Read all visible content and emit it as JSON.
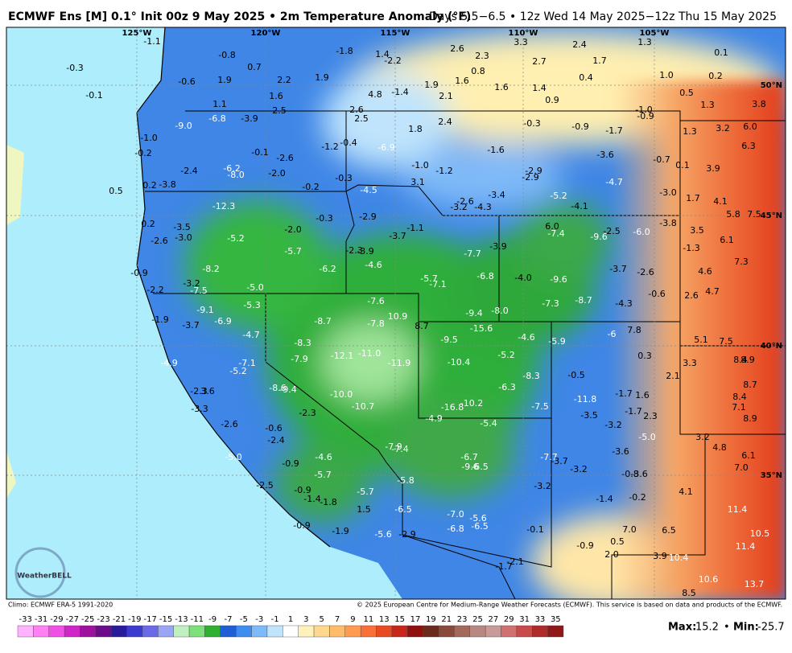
{
  "header": {
    "title": "ECMWF Ens [M] 0.1° Init 00z 9 May 2025 • 2m Temperature Anomaly (°F)",
    "valid": "Days 5.5−6.5 • 12z Wed 14 May 2025−12z Thu 15 May 2025"
  },
  "map": {
    "longitudes": [
      "125°W",
      "120°W",
      "115°W",
      "110°W",
      "105°W"
    ],
    "latitudes": [
      "50°N",
      "45°N",
      "40°N",
      "35°N"
    ],
    "labels": [
      "-1.1",
      "-0.8",
      "0.7",
      "-1.8",
      "1.4",
      "-2.2",
      "2.6",
      "2.3",
      "3.3",
      "2.4",
      "1.3",
      "0.1",
      "-0.3",
      "-0.6",
      "1.9",
      "2.2",
      "1.9",
      "1.9",
      "1.6",
      "0.8",
      "2.7",
      "1.7",
      "0.4",
      "1.0",
      "0.2",
      "1.6",
      "1.4",
      "-0.1",
      "1.1",
      "1.6",
      "4.8",
      "-1.4",
      "2.1",
      "0.9",
      "0.5",
      "1.3",
      "3.8",
      "2.5",
      "2.6",
      "-1.0",
      "-0.9",
      "-6.8",
      "-3.9",
      "2.5",
      "-9.0",
      "1.8",
      "2.4",
      "-0.3",
      "-0.9",
      "-1.7",
      "1.3",
      "3.2",
      "6.0",
      "-1.0",
      "-1.2",
      "-0.4",
      "-6.9",
      "-1.6",
      "-3.6",
      "6.3",
      "-0.2",
      "-0.1",
      "-2.6",
      "-0.7",
      "0.1",
      "3.9",
      "-2.4",
      "-6.2",
      "-8.0",
      "-2.0",
      "-1.0",
      "-1.2",
      "-2.9",
      "-2.9",
      "-4.7",
      "0.5",
      "0.2",
      "-3.8",
      "-0.3",
      "-0.2",
      "-4.5",
      "3.1",
      "-3.0",
      "1.7",
      "4.1",
      "-3.4",
      "-5.2",
      "-2.6",
      "-3.2",
      "-4.3",
      "-4.1",
      "-12.3",
      "-2.9",
      "-0.3",
      "5.8",
      "7.5",
      "0.2",
      "-1.1",
      "-3.8",
      "6.0",
      "-7.4",
      "-2.5",
      "-6.0",
      "-9.6",
      "3.5",
      "-3.5",
      "-2.0",
      "-3.0",
      "-2.6",
      "-5.2",
      "-3.7",
      "6.1",
      "-1.3",
      "-3.9",
      "-5.7",
      "-2.3",
      "-3.9",
      "-4.6",
      "-7.7",
      "7.3",
      "-8.2",
      "-6.2",
      "-3.7",
      "-2.6",
      "4.6",
      "-0.9",
      "-6.8",
      "-4.0",
      "-9.6",
      "-5.7",
      "-7.1",
      "-3.2",
      "4.7",
      "-5.0",
      "-2.2",
      "-7.5",
      "-0.6",
      "2.6",
      "-7.6",
      "-7.3",
      "-8.7",
      "-4.3",
      "-5.3",
      "-9.1",
      "-9.4",
      "-8.0",
      "10.9",
      "-1.9",
      "-6.9",
      "-8.7",
      "-7.8",
      "8.7",
      "-15.6",
      "-4.7",
      "-3.7",
      "-4.6",
      "-5.9",
      "-6",
      "7.8",
      "5.1",
      "7.5",
      "8.9",
      "-8.3",
      "-9.5",
      "-5.2",
      "0.3",
      "3.3",
      "8.4",
      "-12.1",
      "-11.0",
      "-7.9",
      "-11.9",
      "-10.4",
      "-7.1",
      "-4.9",
      "-5.2",
      "-8.3",
      "-0.5",
      "2.1",
      "8.7",
      "-6.3",
      "-8.6",
      "-9.4",
      "-2.3",
      "3.6",
      "-1.7",
      "1.6",
      "8.4",
      "-10.0",
      "-10.7",
      "-11.8",
      "-16.8",
      "-10.2",
      "-7.5",
      "7.1",
      "-3.3",
      "-2.3",
      "-1.7",
      "2.3",
      "-4.9",
      "-5.4",
      "-3.5",
      "8.9",
      "-2.6",
      "-0.6",
      "-3.2",
      "-5.0",
      "3.2",
      "-2.4",
      "-7.9",
      "-7.4",
      "-3.6",
      "4.8",
      "6.1",
      "-5.0",
      "-4.6",
      "-6.7",
      "-7.7",
      "-3.7",
      "7.0",
      "-9.6",
      "-6.5",
      "-0.9",
      "-5.7",
      "-3.2",
      "-0.8",
      "-3.6",
      "-5.8",
      "-2.5",
      "-3.2",
      "4.1",
      "-0.9",
      "-5.7",
      "-1.4",
      "-1.8",
      "-1.4",
      "-0.2",
      "11.4",
      "-6.5",
      "-7.0",
      "1.5",
      "-5.6",
      "-0.9",
      "-6.8",
      "-6.5",
      "-0.1",
      "7.0",
      "6.5",
      "10.5",
      "-1.9",
      "-5.6",
      "-2.9",
      "11.4",
      "-0.9",
      "0.5",
      "2.0",
      "3.9",
      "10.4",
      "-2.1",
      "-1.7",
      "10.6",
      "13.7",
      "8.5"
    ]
  },
  "logo": {
    "text": "WeatherBELL"
  },
  "footer": {
    "climo": "Climo: ECMWF ERA-5 1991-2020",
    "copyright": "© 2025 European Centre for Medium-Range Weather Forecasts (ECMWF). This service is based on data and products of the ECMWF.",
    "max_label": "Max:",
    "max": "15.2",
    "separator": "•",
    "min_label": "Min:",
    "min": "-25.7"
  },
  "colorbar": {
    "ticks": [
      "-33",
      "-31",
      "-29",
      "-27",
      "-25",
      "-23",
      "-21",
      "-19",
      "-17",
      "-15",
      "-13",
      "-11",
      "-9",
      "-7",
      "-5",
      "-3",
      "-1",
      "1",
      "3",
      "5",
      "7",
      "9",
      "11",
      "13",
      "15",
      "17",
      "19",
      "21",
      "23",
      "25",
      "27",
      "29",
      "31",
      "33",
      "35"
    ],
    "colors": [
      "#ffb3ff",
      "#ff80f2",
      "#f050e6",
      "#d026c8",
      "#a0109e",
      "#6c0c8a",
      "#2a1a9c",
      "#3b3bd0",
      "#6a6ae6",
      "#9aa6f4",
      "#bff0bf",
      "#7ee07a",
      "#2fb032",
      "#1f5fd6",
      "#3f8cf0",
      "#7fbaf8",
      "#bfe4fc",
      "#ffffff",
      "#fff2b8",
      "#ffd890",
      "#ffbd6a",
      "#ff9a50",
      "#f87038",
      "#e84a24",
      "#c8261a",
      "#901010",
      "#6a2a1e",
      "#8a4a3a",
      "#a4685c",
      "#b88880",
      "#c89a98",
      "#d07070",
      "#c84a4a",
      "#b02a2a",
      "#901818"
    ]
  }
}
